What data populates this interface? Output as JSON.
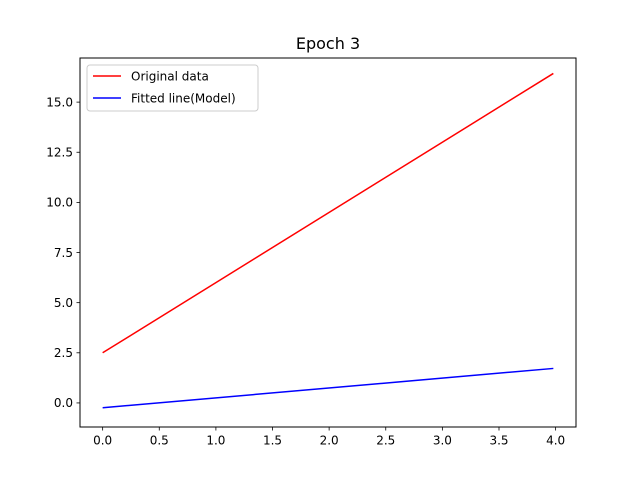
{
  "chart_data": {
    "type": "line",
    "title": "Epoch 3",
    "xlabel": "",
    "ylabel": "",
    "xlim": [
      -0.2,
      4.18
    ],
    "ylim": [
      -1.2,
      17.2
    ],
    "xticks": [
      0.0,
      0.5,
      1.0,
      1.5,
      2.0,
      2.5,
      3.0,
      3.5,
      4.0
    ],
    "xtick_labels": [
      "0.0",
      "0.5",
      "1.0",
      "1.5",
      "2.0",
      "2.5",
      "3.0",
      "3.5",
      "4.0"
    ],
    "yticks": [
      0.0,
      2.5,
      5.0,
      7.5,
      10.0,
      12.5,
      15.0
    ],
    "ytick_labels": [
      "0.0",
      "2.5",
      "5.0",
      "7.5",
      "10.0",
      "12.5",
      "15.0"
    ],
    "grid": false,
    "legend_position": "upper-left",
    "series": [
      {
        "name": "Original data",
        "color": "#ff0000",
        "x": [
          0.0,
          3.98
        ],
        "y": [
          2.5,
          16.43
        ]
      },
      {
        "name": "Fitted line(Model)",
        "color": "#0000ff",
        "x": [
          0.0,
          3.98
        ],
        "y": [
          -0.24,
          1.72
        ]
      }
    ]
  }
}
